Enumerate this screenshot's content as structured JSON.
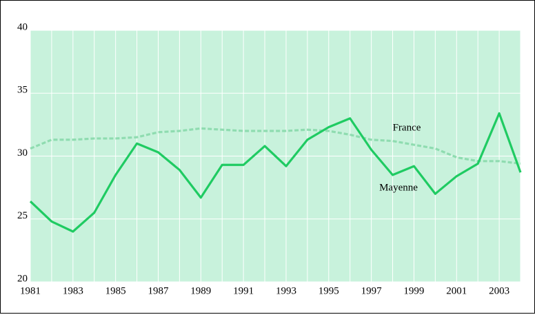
{
  "chart_data": {
    "type": "line",
    "x": [
      1981,
      1982,
      1983,
      1984,
      1985,
      1986,
      1987,
      1988,
      1989,
      1990,
      1991,
      1992,
      1993,
      1994,
      1995,
      1996,
      1997,
      1998,
      1999,
      2000,
      2001,
      2002,
      2003,
      2004
    ],
    "series": [
      {
        "name": "France",
        "color": "#8fdcb0",
        "dashed": true,
        "values": [
          30.6,
          31.3,
          31.3,
          31.4,
          31.4,
          31.5,
          31.9,
          32.0,
          32.2,
          32.1,
          32.0,
          32.0,
          32.0,
          32.1,
          32.0,
          31.7,
          31.3,
          31.2,
          30.9,
          30.6,
          29.9,
          29.6,
          29.6,
          29.4
        ]
      },
      {
        "name": "Mayenne",
        "color": "#1fcb62",
        "dashed": false,
        "values": [
          26.4,
          24.8,
          24.0,
          25.5,
          28.5,
          31.0,
          30.3,
          28.9,
          26.7,
          29.3,
          29.3,
          30.8,
          29.2,
          31.3,
          32.3,
          33.0,
          30.5,
          28.5,
          29.2,
          27.0,
          28.4,
          29.4,
          33.4,
          28.7
        ]
      }
    ],
    "xlim": [
      1981,
      2004
    ],
    "xticks": [
      1981,
      1983,
      1985,
      1987,
      1989,
      1991,
      1993,
      1995,
      1997,
      1999,
      2001,
      2003
    ],
    "ylim": [
      20,
      40
    ],
    "yticks": [
      20,
      25,
      30,
      35,
      40
    ],
    "grid": true
  }
}
